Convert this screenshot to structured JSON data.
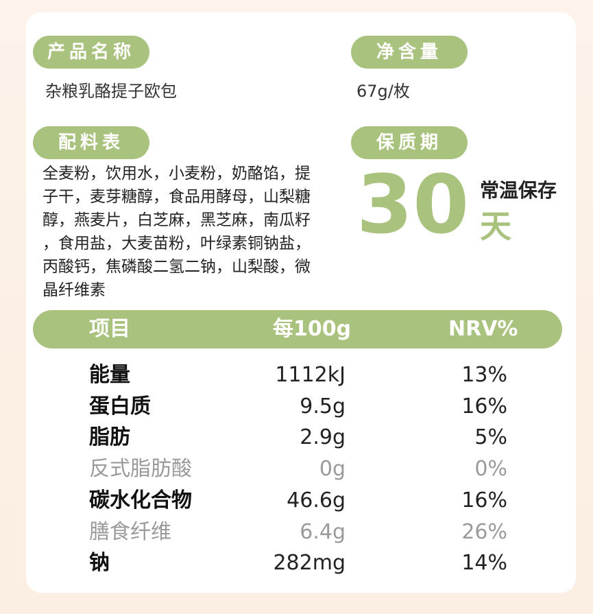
{
  "product_name": {
    "label": "产品名称",
    "value": "杂粮乳酪提子欧包"
  },
  "net_content": {
    "label": "净含量",
    "value": "67g/枚"
  },
  "ingredients": {
    "label": "配料表",
    "lines": [
      "全麦粉，饮用水，小麦粉，奶酪馅，提",
      "子干，麦芽糖醇，食品用酵母，山梨糖",
      "醇，燕麦片，白芝麻，黑芝麻，南瓜籽",
      "，食用盐，大麦苗粉，叶绿素铜钠盐，",
      "丙酸钙，焦磷酸二氢二钠，山梨酸，微",
      "晶纤维素"
    ]
  },
  "shelf_life": {
    "label": "保质期",
    "number": "30",
    "unit": "天",
    "storage": "常温保存"
  },
  "nutrition": {
    "headers": {
      "item": "项目",
      "per100g": "每100g",
      "nrv": "NRV%"
    },
    "rows": [
      {
        "name": "能量",
        "per100g": "1112kJ",
        "nrv": "13%",
        "style": "bold"
      },
      {
        "name": "蛋白质",
        "per100g": "9.5g",
        "nrv": "16%",
        "style": "bold"
      },
      {
        "name": "脂肪",
        "per100g": "2.9g",
        "nrv": "5%",
        "style": "bold"
      },
      {
        "name": "反式脂肪酸",
        "per100g": "0g",
        "nrv": "0%",
        "style": "muted"
      },
      {
        "name": "碳水化合物",
        "per100g": "46.6g",
        "nrv": "16%",
        "style": "bold"
      },
      {
        "name": "膳食纤维",
        "per100g": "6.4g",
        "nrv": "26%",
        "style": "muted"
      },
      {
        "name": "钠",
        "per100g": "282mg",
        "nrv": "14%",
        "style": "bold"
      }
    ]
  },
  "colors": {
    "accent": "#a9c27e",
    "background": "#fbeee2",
    "muted_text": "#9a9a9a"
  }
}
